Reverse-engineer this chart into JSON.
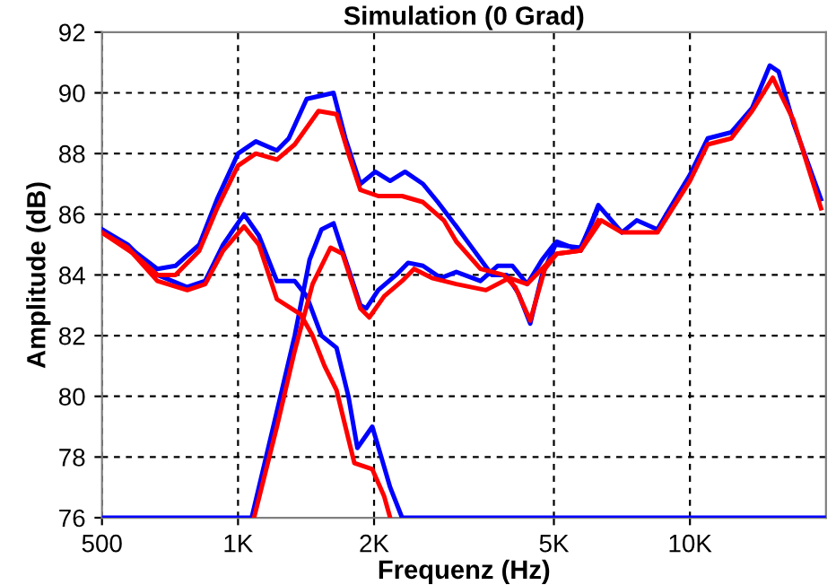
{
  "chart_data": {
    "type": "line",
    "title": "Simulation (0 Grad)",
    "xlabel": "Frequenz (Hz)",
    "ylabel": "Amplitude (dB)",
    "log": "x",
    "grid": true,
    "line_style": "solid",
    "xlim": [
      500,
      20000
    ],
    "xticks": [
      500,
      {
        "value": 1000,
        "label": "1K"
      },
      {
        "value": 2000,
        "label": "2K"
      },
      {
        "value": 5000,
        "label": "5K"
      },
      {
        "value": 10000,
        "label": "10K"
      }
    ],
    "ylim": [
      76,
      92
    ],
    "yticks": [
      76,
      78,
      80,
      82,
      84,
      86,
      88,
      90,
      92
    ],
    "series": [
      {
        "color": "#0000ff",
        "x": [
          500,
          587,
          663,
          727,
          821,
          899,
          1000,
          1095,
          1219,
          1295,
          1419,
          1627,
          1728,
          1865,
          2012,
          2171,
          2342,
          2566,
          2768,
          3041,
          3331,
          3647,
          3928,
          4170,
          4432,
          4708,
          5076,
          5727,
          6268,
          7071,
          7625,
          8473,
          8866,
          10000,
          10946,
          12344,
          13728,
          15022,
          15716,
          16947,
          19500
        ],
        "values": [
          85.5,
          84.8,
          84.2,
          84.3,
          85.0,
          86.5,
          88.0,
          88.4,
          88.1,
          88.5,
          89.8,
          90.0,
          88.5,
          87.0,
          87.4,
          87.1,
          87.4,
          87.0,
          86.4,
          85.6,
          84.8,
          84.0,
          84.0,
          83.4,
          82.4,
          84.0,
          85.1,
          84.8,
          86.3,
          85.4,
          85.8,
          85.5,
          86.0,
          87.3,
          88.5,
          88.7,
          89.5,
          90.9,
          90.7,
          89.0,
          86.5
        ]
      },
      {
        "color": "#ff0000",
        "x": [
          500,
          587,
          663,
          727,
          821,
          899,
          1000,
          1095,
          1219,
          1335,
          1507,
          1652,
          1755,
          1865,
          2043,
          2307,
          2566,
          2854,
          3041,
          3439,
          3869,
          4108,
          4432,
          4777,
          5076,
          5727,
          6363,
          7071,
          8473,
          10000,
          10946,
          12344,
          13728,
          15253,
          16947,
          19500
        ],
        "values": [
          85.4,
          84.7,
          84.0,
          84.0,
          84.8,
          86.2,
          87.6,
          88.0,
          87.8,
          88.3,
          89.4,
          89.3,
          88.0,
          86.8,
          86.6,
          86.6,
          86.4,
          85.8,
          85.1,
          84.2,
          84.0,
          83.6,
          82.5,
          84.2,
          84.7,
          84.8,
          85.8,
          85.4,
          85.4,
          87.1,
          88.3,
          88.5,
          89.4,
          90.5,
          89.1,
          86.2
        ]
      },
      {
        "color": "#0000ff",
        "x": [
          500,
          570,
          663,
          772,
          846,
          927,
          1031,
          1112,
          1219,
          1335,
          1419,
          1530,
          1652,
          1755,
          1837,
          1982,
          2075,
          2171,
          2307,
          20000
        ],
        "values": [
          85.5,
          85.0,
          84.0,
          83.6,
          83.8,
          85.0,
          86.0,
          85.3,
          83.8,
          83.8,
          83.3,
          82.0,
          81.6,
          80.0,
          78.3,
          79.0,
          78.0,
          77.0,
          76.0,
          76.0
        ]
      },
      {
        "color": "#ff0000",
        "x": [
          500,
          570,
          663,
          772,
          846,
          927,
          1031,
          1112,
          1219,
          1376,
          1462,
          1554,
          1652,
          1755,
          1809,
          1982,
          2106,
          2171
        ],
        "values": [
          85.4,
          84.9,
          83.8,
          83.5,
          83.7,
          84.8,
          85.6,
          85.0,
          83.2,
          82.7,
          82.0,
          81.0,
          80.2,
          78.6,
          77.8,
          77.6,
          76.7,
          76.0
        ]
      },
      {
        "color": "#0000ff",
        "x": [
          500,
          1072,
          1219,
          1335,
          1440,
          1530,
          1627,
          1728,
          1865,
          1922,
          2043,
          2238,
          2378,
          2566,
          2811,
          3041,
          3439,
          3753,
          4047,
          4365,
          4708,
          5000,
          5727,
          6268
        ],
        "values": [
          76.0,
          76.0,
          79.5,
          82.0,
          84.5,
          85.5,
          85.7,
          84.5,
          83.0,
          82.9,
          83.5,
          84.0,
          84.4,
          84.3,
          83.9,
          84.1,
          83.8,
          84.3,
          84.3,
          83.7,
          84.5,
          85.0,
          84.9,
          86.2
        ]
      },
      {
        "color": "#ff0000",
        "x": [
          1085,
          1219,
          1335,
          1462,
          1602,
          1703,
          1865,
          1952,
          2106,
          2307,
          2452,
          2686,
          3041,
          3536,
          3986,
          4365,
          4777,
          5076,
          5727,
          6268
        ],
        "values": [
          76.0,
          79.0,
          81.5,
          83.7,
          84.9,
          84.7,
          82.9,
          82.6,
          83.3,
          83.8,
          84.2,
          83.9,
          83.7,
          83.5,
          83.9,
          83.7,
          84.3,
          84.7,
          84.8,
          85.8
        ]
      }
    ]
  }
}
